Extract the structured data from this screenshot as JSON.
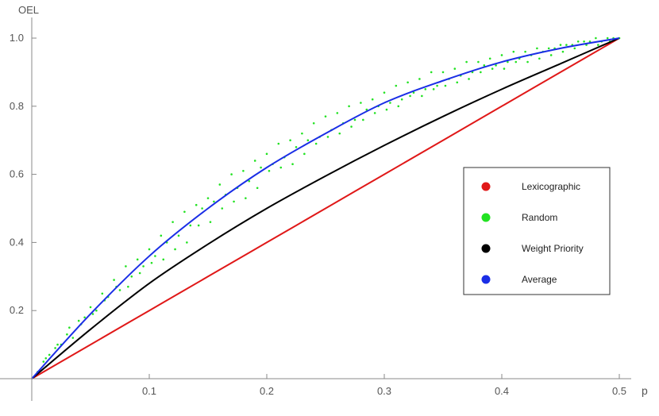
{
  "chart_data": {
    "type": "line",
    "title": "",
    "xlabel": "p",
    "ylabel": "OEL",
    "xlim": [
      0,
      0.5
    ],
    "ylim": [
      0,
      1.0
    ],
    "x_ticks": [
      "0.1",
      "0.2",
      "0.3",
      "0.4",
      "0.5"
    ],
    "y_ticks": [
      "0.2",
      "0.4",
      "0.6",
      "0.8",
      "1.0"
    ],
    "grid": false,
    "legend_position": "right",
    "series": [
      {
        "name": "Lexicographic",
        "color": "#e01818",
        "style": "line",
        "x": [
          0,
          0.05,
          0.1,
          0.15,
          0.2,
          0.25,
          0.3,
          0.35,
          0.4,
          0.45,
          0.5
        ],
        "y": [
          0,
          0.1,
          0.2,
          0.3,
          0.4,
          0.5,
          0.6,
          0.7,
          0.8,
          0.9,
          1.0
        ]
      },
      {
        "name": "Random",
        "color": "#22e222",
        "style": "scatter",
        "x": [
          0.005,
          0.01,
          0.015,
          0.02,
          0.025,
          0.03,
          0.035,
          0.04,
          0.045,
          0.05,
          0.055,
          0.06,
          0.065,
          0.07,
          0.075,
          0.08,
          0.085,
          0.09,
          0.095,
          0.1,
          0.105,
          0.11,
          0.115,
          0.12,
          0.125,
          0.13,
          0.135,
          0.14,
          0.145,
          0.15,
          0.155,
          0.16,
          0.165,
          0.17,
          0.175,
          0.18,
          0.185,
          0.19,
          0.195,
          0.2,
          0.205,
          0.21,
          0.215,
          0.22,
          0.225,
          0.23,
          0.235,
          0.24,
          0.245,
          0.25,
          0.255,
          0.26,
          0.265,
          0.27,
          0.275,
          0.28,
          0.285,
          0.29,
          0.295,
          0.3,
          0.305,
          0.31,
          0.315,
          0.32,
          0.325,
          0.33,
          0.335,
          0.34,
          0.345,
          0.35,
          0.355,
          0.36,
          0.365,
          0.37,
          0.375,
          0.38,
          0.385,
          0.39,
          0.395,
          0.4,
          0.405,
          0.41,
          0.415,
          0.42,
          0.425,
          0.43,
          0.435,
          0.44,
          0.445,
          0.45,
          0.455,
          0.46,
          0.465,
          0.47,
          0.475,
          0.48,
          0.485,
          0.49,
          0.495,
          0.5,
          0.012,
          0.022,
          0.032,
          0.042,
          0.052,
          0.062,
          0.072,
          0.082,
          0.092,
          0.102,
          0.112,
          0.122,
          0.132,
          0.142,
          0.152,
          0.162,
          0.172,
          0.182,
          0.192,
          0.202,
          0.212,
          0.222,
          0.232,
          0.242,
          0.252,
          0.262,
          0.272,
          0.282,
          0.292,
          0.302,
          0.312,
          0.322,
          0.332,
          0.342,
          0.352,
          0.362,
          0.372,
          0.382,
          0.392,
          0.402,
          0.412,
          0.422,
          0.432,
          0.442,
          0.452,
          0.462,
          0.472,
          0.482,
          0.492
        ],
        "y": [
          0.02,
          0.05,
          0.07,
          0.09,
          0.1,
          0.13,
          0.12,
          0.17,
          0.18,
          0.21,
          0.2,
          0.25,
          0.24,
          0.29,
          0.26,
          0.33,
          0.3,
          0.35,
          0.33,
          0.38,
          0.36,
          0.42,
          0.4,
          0.46,
          0.42,
          0.49,
          0.45,
          0.51,
          0.5,
          0.53,
          0.52,
          0.57,
          0.54,
          0.6,
          0.56,
          0.61,
          0.58,
          0.64,
          0.62,
          0.66,
          0.63,
          0.69,
          0.65,
          0.7,
          0.68,
          0.72,
          0.7,
          0.75,
          0.71,
          0.77,
          0.73,
          0.78,
          0.75,
          0.8,
          0.76,
          0.81,
          0.79,
          0.82,
          0.8,
          0.84,
          0.81,
          0.86,
          0.82,
          0.87,
          0.84,
          0.88,
          0.85,
          0.9,
          0.86,
          0.9,
          0.88,
          0.91,
          0.89,
          0.93,
          0.9,
          0.93,
          0.92,
          0.94,
          0.92,
          0.95,
          0.93,
          0.96,
          0.94,
          0.96,
          0.95,
          0.97,
          0.96,
          0.97,
          0.97,
          0.98,
          0.98,
          0.98,
          0.99,
          0.99,
          0.99,
          1.0,
          0.99,
          1.0,
          1.0,
          1.0,
          0.06,
          0.1,
          0.15,
          0.16,
          0.19,
          0.23,
          0.27,
          0.27,
          0.31,
          0.34,
          0.35,
          0.38,
          0.4,
          0.45,
          0.46,
          0.5,
          0.52,
          0.53,
          0.56,
          0.61,
          0.62,
          0.63,
          0.66,
          0.69,
          0.71,
          0.72,
          0.74,
          0.76,
          0.78,
          0.79,
          0.8,
          0.83,
          0.83,
          0.85,
          0.86,
          0.87,
          0.88,
          0.9,
          0.91,
          0.91,
          0.93,
          0.93,
          0.94,
          0.95,
          0.96,
          0.97,
          0.98,
          0.98,
          0.99
        ]
      },
      {
        "name": "Weight Priority",
        "color": "#000000",
        "style": "line",
        "x": [
          0,
          0.05,
          0.1,
          0.15,
          0.2,
          0.25,
          0.3,
          0.35,
          0.4,
          0.45,
          0.5
        ],
        "y": [
          0,
          0.145,
          0.28,
          0.395,
          0.5,
          0.595,
          0.685,
          0.77,
          0.85,
          0.925,
          1.0
        ]
      },
      {
        "name": "Average",
        "color": "#1a2ee6",
        "style": "line",
        "x": [
          0,
          0.05,
          0.1,
          0.15,
          0.2,
          0.25,
          0.3,
          0.35,
          0.4,
          0.45,
          0.5
        ],
        "y": [
          0,
          0.19,
          0.36,
          0.5,
          0.62,
          0.72,
          0.81,
          0.875,
          0.93,
          0.97,
          1.0
        ]
      }
    ]
  }
}
